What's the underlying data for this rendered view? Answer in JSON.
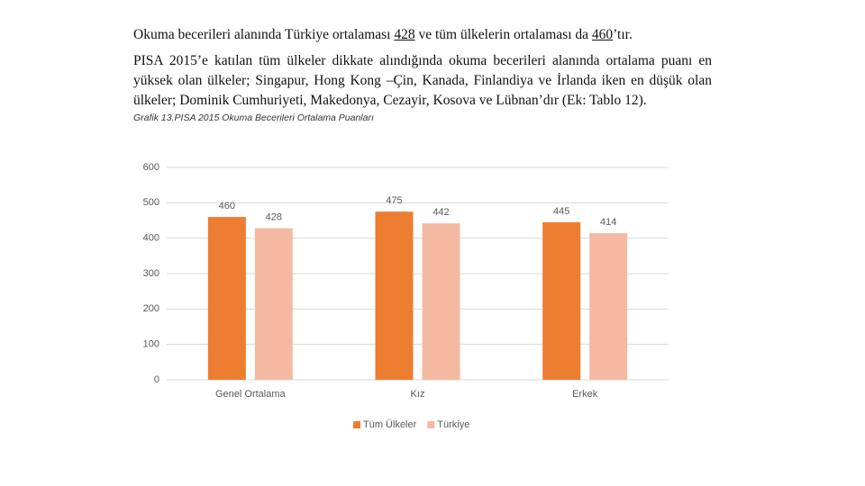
{
  "document": {
    "paragraph1": [
      "Okuma becerileri alanında Türkiye ortalaması ",
      "428",
      " ve tüm ülkelerin ortalaması da ",
      "460",
      "’tır."
    ],
    "paragraph2": "PISA 2015’e katılan tüm ülkeler dikkate alındığında okuma becerileri alanında ortalama puanı en yüksek olan ülkeler; Singapur, Hong Kong –Çin, Kanada, Finlandiya ve İrlanda iken en düşük olan ülkeler; Dominik Cumhuriyeti, Makedonya, Cezayir, Kosova ve Lübnan’dır (Ek: Tablo 12).",
    "caption": "Grafik 13.PISA 2015 Okuma Becerileri Ortalama Puanları"
  },
  "chart_data": {
    "type": "bar",
    "categories": [
      "Genel Ortalama",
      "Kız",
      "Erkek"
    ],
    "series": [
      {
        "name": "Tüm Ülkeler",
        "color": "#ed7d31",
        "values": [
          460,
          475,
          445
        ]
      },
      {
        "name": "Türkiye",
        "color": "#f4b9a1",
        "values": [
          428,
          442,
          414
        ]
      }
    ],
    "ylim": [
      0,
      600
    ],
    "yticks": [
      0,
      100,
      200,
      300,
      400,
      500,
      600
    ],
    "grid": true,
    "data_labels": true,
    "legend": "bottom"
  }
}
